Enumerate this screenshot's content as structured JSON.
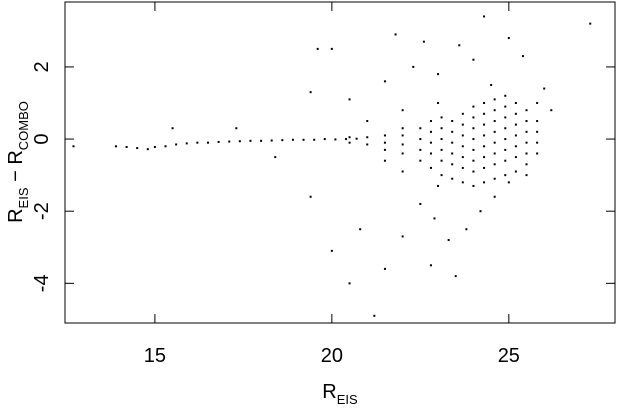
{
  "chart_data": {
    "type": "scatter",
    "xlabel": {
      "main": "R",
      "sub": "EIS"
    },
    "ylabel": {
      "main": "R",
      "sub": "EIS",
      "main2": " − R",
      "sub2": "COMBO"
    },
    "color": "#000000",
    "xlim": [
      12.46,
      28.0
    ],
    "ylim": [
      -5.1,
      3.8
    ],
    "xticks": [
      15,
      20,
      25
    ],
    "yticks": [
      -4,
      -2,
      0,
      2
    ],
    "x": [
      12.7,
      13.9,
      14.2,
      14.5,
      14.8,
      15.0,
      15.3,
      15.6,
      15.9,
      16.2,
      16.5,
      16.8,
      17.1,
      17.4,
      17.7,
      18.0,
      18.3,
      18.6,
      18.9,
      19.2,
      19.5,
      19.8,
      20.1,
      20.4,
      20.7,
      27.3,
      24.3,
      22.6,
      19.6,
      20.0,
      21.8,
      23.6,
      25.0,
      21.2,
      20.5,
      20.0,
      19.4,
      21.5,
      22.8,
      23.5,
      22.0,
      20.8,
      18.4,
      17.3,
      15.5,
      19.4,
      20.5,
      21.5,
      22.3,
      23.0,
      24.0,
      25.4,
      26.0,
      26.2,
      22.5,
      22.9,
      23.3,
      23.8,
      24.2,
      24.6,
      25.0,
      25.5,
      23.0,
      22.0,
      21.5,
      21.0,
      22.0,
      23.0,
      24.5,
      25.8,
      22.5,
      22.5,
      22.5,
      22.5,
      22.8,
      22.8,
      22.8,
      22.8,
      22.8,
      23.1,
      23.1,
      23.1,
      23.1,
      23.1,
      23.1,
      23.4,
      23.4,
      23.4,
      23.4,
      23.4,
      23.4,
      23.7,
      23.7,
      23.7,
      23.7,
      23.7,
      23.7,
      23.7,
      24.0,
      24.0,
      24.0,
      24.0,
      24.0,
      24.0,
      24.0,
      24.0,
      24.3,
      24.3,
      24.3,
      24.3,
      24.3,
      24.3,
      24.3,
      24.3,
      24.6,
      24.6,
      24.6,
      24.6,
      24.6,
      24.6,
      24.6,
      24.6,
      24.9,
      24.9,
      24.9,
      24.9,
      24.9,
      24.9,
      24.9,
      24.9,
      25.2,
      25.2,
      25.2,
      25.2,
      25.2,
      25.2,
      25.2,
      25.5,
      25.5,
      25.5,
      25.5,
      25.5,
      25.5,
      25.8,
      25.8,
      25.8,
      25.8,
      21.5,
      21.5,
      21.5,
      22.0,
      22.0,
      22.0,
      22.0,
      21.0,
      21.0,
      20.5,
      20.5
    ],
    "values": [
      -0.2,
      -0.2,
      -0.22,
      -0.25,
      -0.28,
      -0.22,
      -0.2,
      -0.15,
      -0.12,
      -0.1,
      -0.1,
      -0.08,
      -0.07,
      -0.06,
      -0.05,
      -0.05,
      -0.04,
      -0.03,
      -0.02,
      -0.02,
      -0.02,
      0,
      -0.01,
      0,
      0.01,
      3.2,
      3.4,
      2.7,
      2.5,
      2.5,
      2.9,
      2.6,
      2.8,
      -4.9,
      -4.0,
      -3.1,
      -1.6,
      -3.6,
      -3.5,
      -3.8,
      -2.7,
      -2.5,
      -0.5,
      0.3,
      0.3,
      1.3,
      1.1,
      1.6,
      2.0,
      1.8,
      2.2,
      2.3,
      1.4,
      0.8,
      -1.8,
      -2.2,
      -2.8,
      -2.5,
      -2.0,
      -1.6,
      -1.2,
      -1.0,
      -1.3,
      -0.9,
      -0.6,
      0.5,
      0.8,
      1.0,
      1.5,
      1.0,
      -0.6,
      -0.3,
      0,
      0.3,
      -0.8,
      -0.4,
      -0.1,
      0.2,
      0.5,
      -1.0,
      -0.6,
      -0.3,
      0,
      0.3,
      0.6,
      -1.1,
      -0.7,
      -0.4,
      -0.1,
      0.2,
      0.5,
      -1.2,
      -0.8,
      -0.5,
      -0.2,
      0.1,
      0.4,
      0.7,
      -1.3,
      -0.9,
      -0.6,
      -0.3,
      0,
      0.3,
      0.6,
      0.9,
      -1.2,
      -0.8,
      -0.5,
      -0.2,
      0.1,
      0.4,
      0.7,
      1.0,
      -1.1,
      -0.7,
      -0.4,
      -0.1,
      0.2,
      0.5,
      0.8,
      1.1,
      -1.0,
      -0.6,
      -0.3,
      0,
      0.3,
      0.6,
      0.9,
      1.2,
      -0.9,
      -0.5,
      -0.2,
      0.1,
      0.4,
      0.7,
      1.0,
      -0.7,
      -0.4,
      -0.1,
      0.2,
      0.5,
      0.8,
      -0.4,
      -0.1,
      0.2,
      0.5,
      -0.3,
      -0.1,
      0.1,
      -0.4,
      -0.15,
      0.1,
      0.3,
      -0.15,
      0.05,
      -0.1,
      0.05
    ]
  }
}
